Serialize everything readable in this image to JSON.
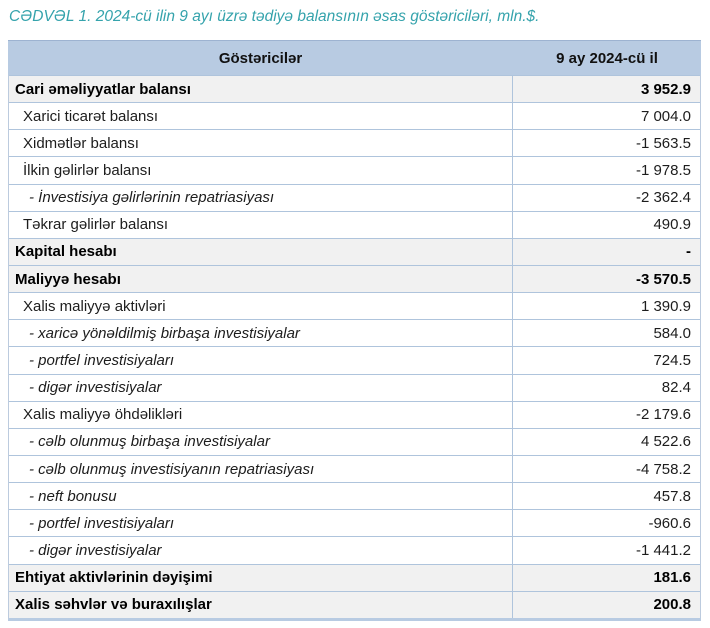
{
  "title": "CƏDVƏL 1. 2024-cü ilin 9 ayı üzrə tədiyə balansının əsas göstəriciləri, mln.$.",
  "colors": {
    "title_teal": "#35A3AC",
    "header_blue": "#B8CBE2",
    "grid_blue": "#AFC4DC",
    "section_gray": "#F1F1F1"
  },
  "table": {
    "columns": [
      "Göstəricilər",
      "9 ay 2024-cü il"
    ],
    "rows": [
      {
        "label": "Cari əməliyyatlar balansı",
        "value": "3 952.9",
        "style": "section"
      },
      {
        "label": "Xarici ticarət balansı",
        "value": "7 004.0",
        "style": "item"
      },
      {
        "label": "Xidmətlər balansı",
        "value": "-1 563.5",
        "style": "item"
      },
      {
        "label": "İlkin gəlirlər balansı",
        "value": "-1 978.5",
        "style": "item"
      },
      {
        "label": "- İnvestisiya gəlirlərinin repatriasiyası",
        "value": "-2 362.4",
        "style": "subitem"
      },
      {
        "label": "Təkrar gəlirlər balansı",
        "value": "490.9",
        "style": "item"
      },
      {
        "label": "Kapital hesabı",
        "value": "-",
        "style": "section"
      },
      {
        "label": "Maliyyə hesabı",
        "value": "-3 570.5",
        "style": "section"
      },
      {
        "label": "Xalis maliyyə aktivləri",
        "value": "1 390.9",
        "style": "item"
      },
      {
        "label": "- xaricə yönəldilmiş birbaşa investisiyalar",
        "value": "584.0",
        "style": "subitem"
      },
      {
        "label": "- portfel investisiyaları",
        "value": "724.5",
        "style": "subitem"
      },
      {
        "label": "- digər investisiyalar",
        "value": "82.4",
        "style": "subitem"
      },
      {
        "label": "Xalis maliyyə öhdəlikləri",
        "value": "-2 179.6",
        "style": "item"
      },
      {
        "label": "- cəlb olunmuş birbaşa investisiyalar",
        "value": "4 522.6",
        "style": "subitem"
      },
      {
        "label": "- cəlb olunmuş investisiyanın repatriasiyası",
        "value": "-4 758.2",
        "style": "subitem"
      },
      {
        "label": "- neft bonusu",
        "value": "457.8",
        "style": "subitem"
      },
      {
        "label": "- portfel investisiyaları",
        "value": "-960.6",
        "style": "subitem"
      },
      {
        "label": "- digər investisiyalar",
        "value": "-1 441.2",
        "style": "subitem"
      },
      {
        "label": "Ehtiyat aktivlərinin dəyişimi",
        "value": "181.6",
        "style": "section"
      },
      {
        "label": "Xalis səhvlər və buraxılışlar",
        "value": "200.8",
        "style": "section"
      }
    ]
  }
}
